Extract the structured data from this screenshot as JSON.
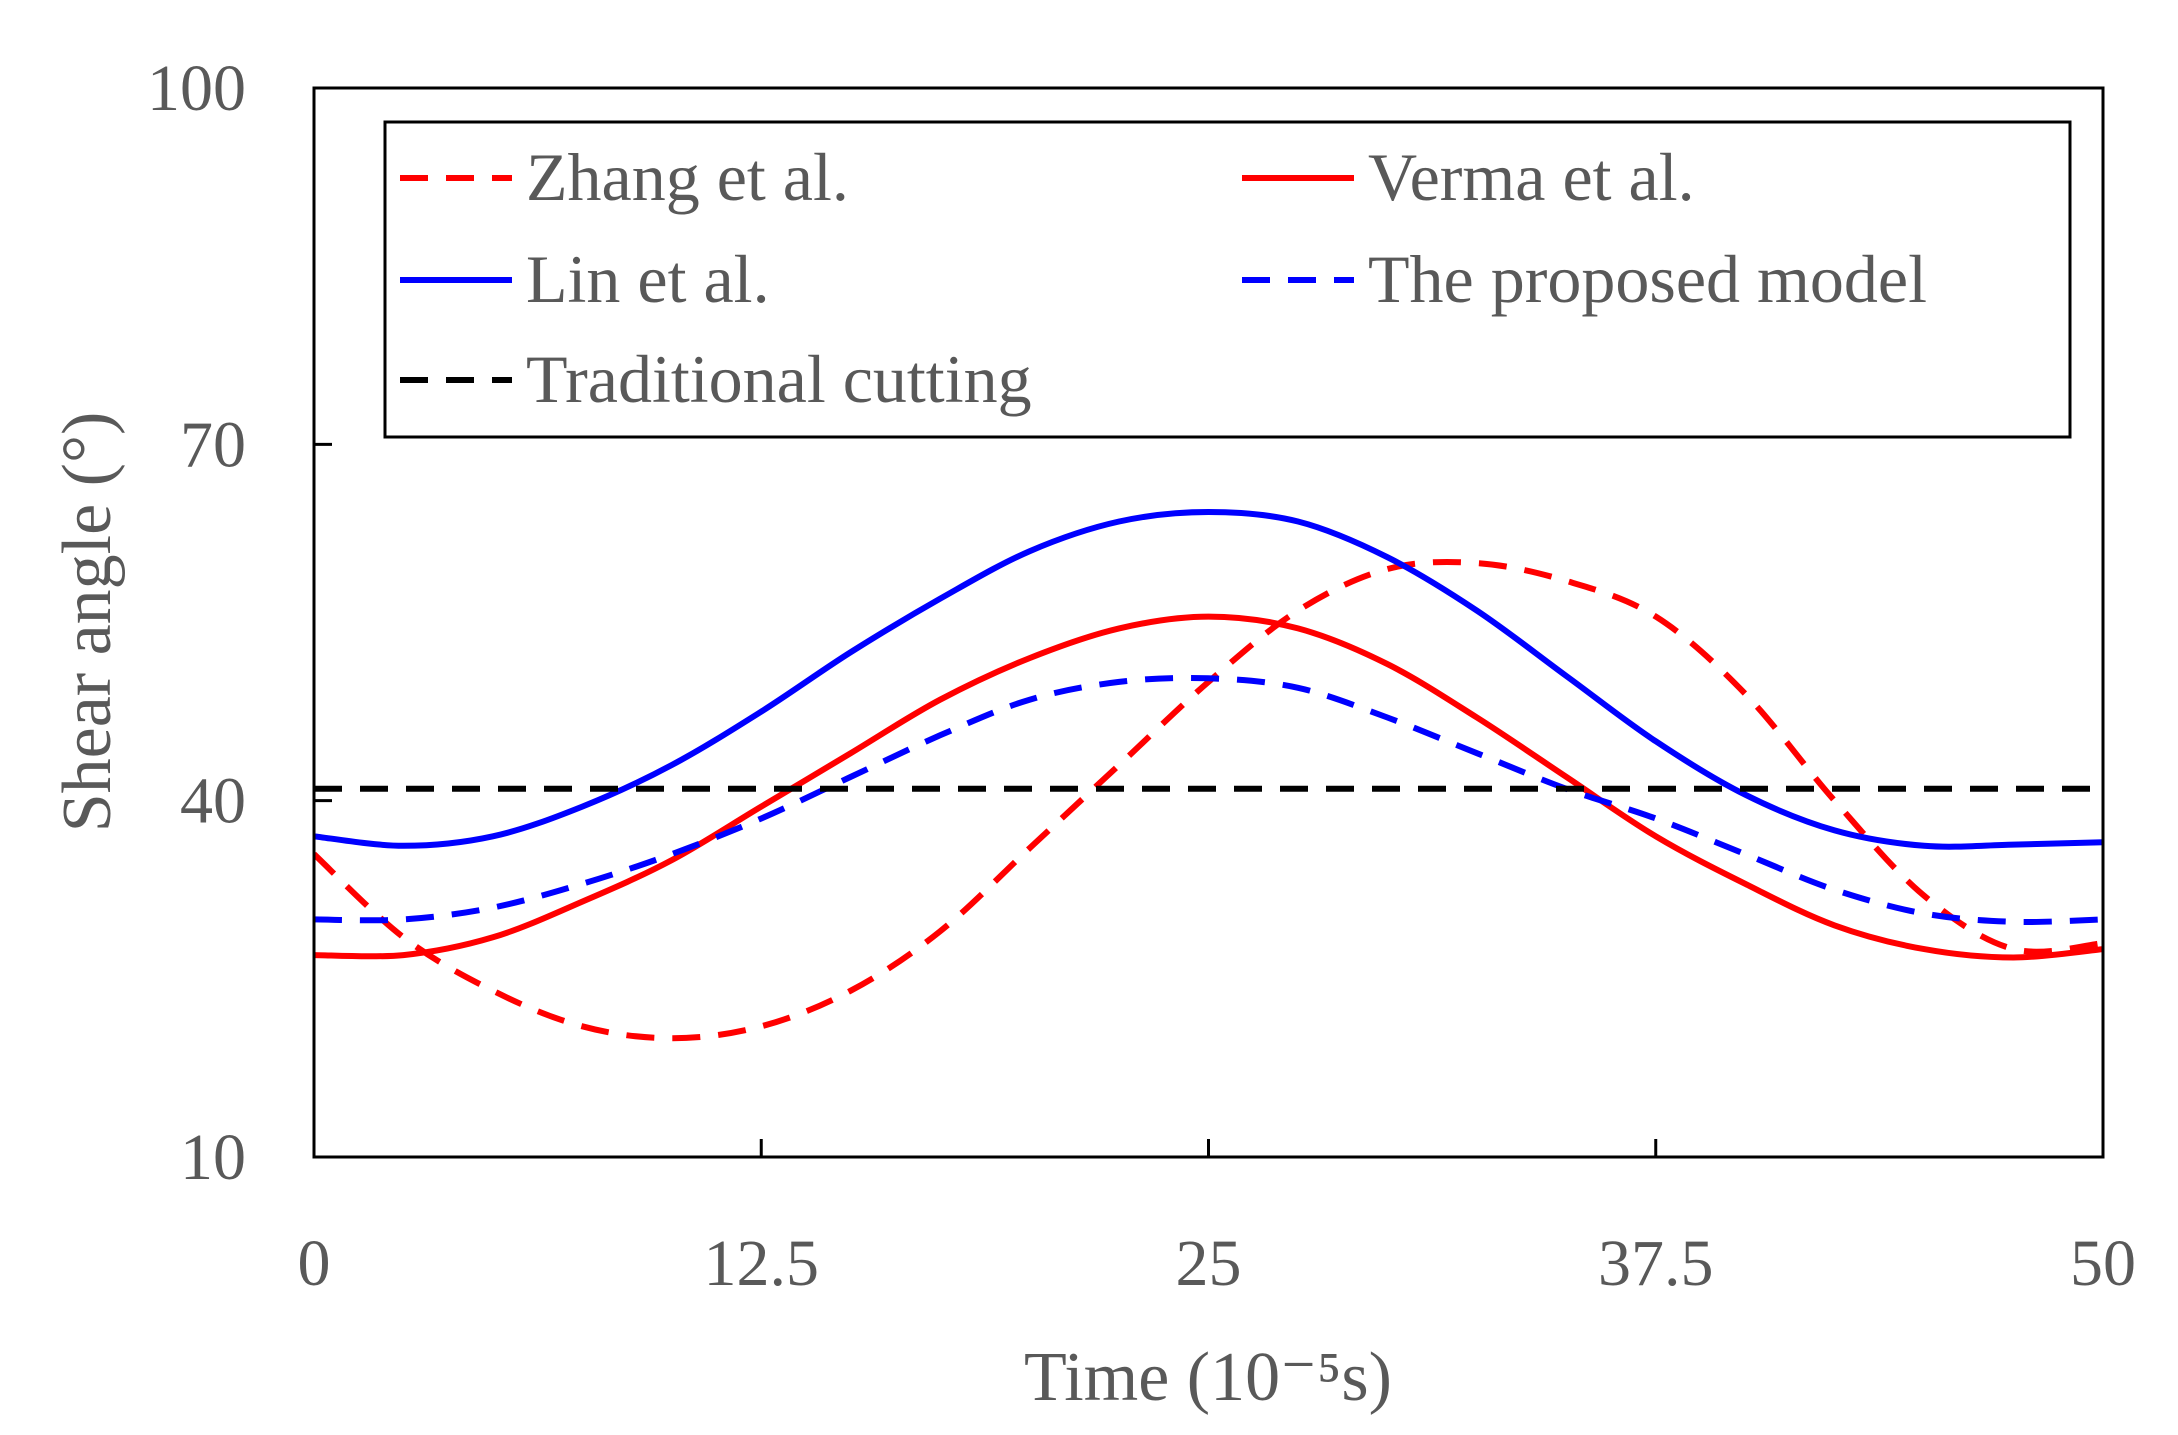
{
  "chart_data": {
    "type": "line",
    "title": "",
    "xlabel": "Time (10⁻⁵s)",
    "ylabel": "Shear angle (°)",
    "xlim": [
      0,
      50
    ],
    "ylim": [
      10,
      100
    ],
    "xticks": [
      0,
      12.5,
      25,
      37.5,
      50
    ],
    "xtick_labels": [
      "0",
      "12.5",
      "25",
      "37.5",
      "50"
    ],
    "yticks": [
      10,
      40,
      70,
      100
    ],
    "ytick_labels": [
      "10",
      "40",
      "70",
      "100"
    ],
    "grid": false,
    "legend_position": "top",
    "x": [
      0,
      2.5,
      5,
      7.5,
      10,
      12.5,
      15,
      17.5,
      20,
      22.5,
      25,
      27.5,
      30,
      32.5,
      35,
      37.5,
      40,
      42.5,
      45,
      47.5,
      50
    ],
    "series": [
      {
        "name": "Zhang et al.",
        "color": "#ff0000",
        "dash": "dashed",
        "values": [
          35.5,
          28.5,
          24,
          21,
          20,
          21,
          24,
          29,
          36,
          43,
          50,
          56,
          59.5,
          60,
          58.5,
          55.5,
          49,
          40,
          32,
          27.5,
          28
        ]
      },
      {
        "name": "Verma et al.",
        "color": "#ff0000",
        "dash": "solid",
        "values": [
          27,
          27,
          28.5,
          31.5,
          35,
          39.5,
          44,
          48.5,
          52,
          54.5,
          55.5,
          54.5,
          51.5,
          47,
          42,
          37,
          33,
          29.5,
          27.5,
          26.8,
          27.5
        ]
      },
      {
        "name": "Lin et al.",
        "color": "#0000ff",
        "dash": "solid",
        "values": [
          37,
          36.2,
          37,
          39.5,
          43,
          47.5,
          52.5,
          57,
          61,
          63.5,
          64.3,
          63.5,
          60.5,
          56,
          50.5,
          45,
          40.5,
          37.5,
          36.2,
          36.3,
          36.5
        ]
      },
      {
        "name": "The proposed model",
        "color": "#0000ff",
        "dash": "dashed",
        "values": [
          30,
          30,
          31,
          33,
          35.5,
          38.5,
          42,
          45.5,
          48.5,
          50,
          50.3,
          49.5,
          47,
          44,
          41,
          38.5,
          35.5,
          32.5,
          30.5,
          29.8,
          30
        ]
      },
      {
        "name": "Traditional cutting",
        "color": "#000000",
        "dash": "dashed",
        "values": [
          41,
          41,
          41,
          41,
          41,
          41,
          41,
          41,
          41,
          41,
          41,
          41,
          41,
          41,
          41,
          41,
          41,
          41,
          41,
          41,
          41
        ]
      }
    ]
  }
}
